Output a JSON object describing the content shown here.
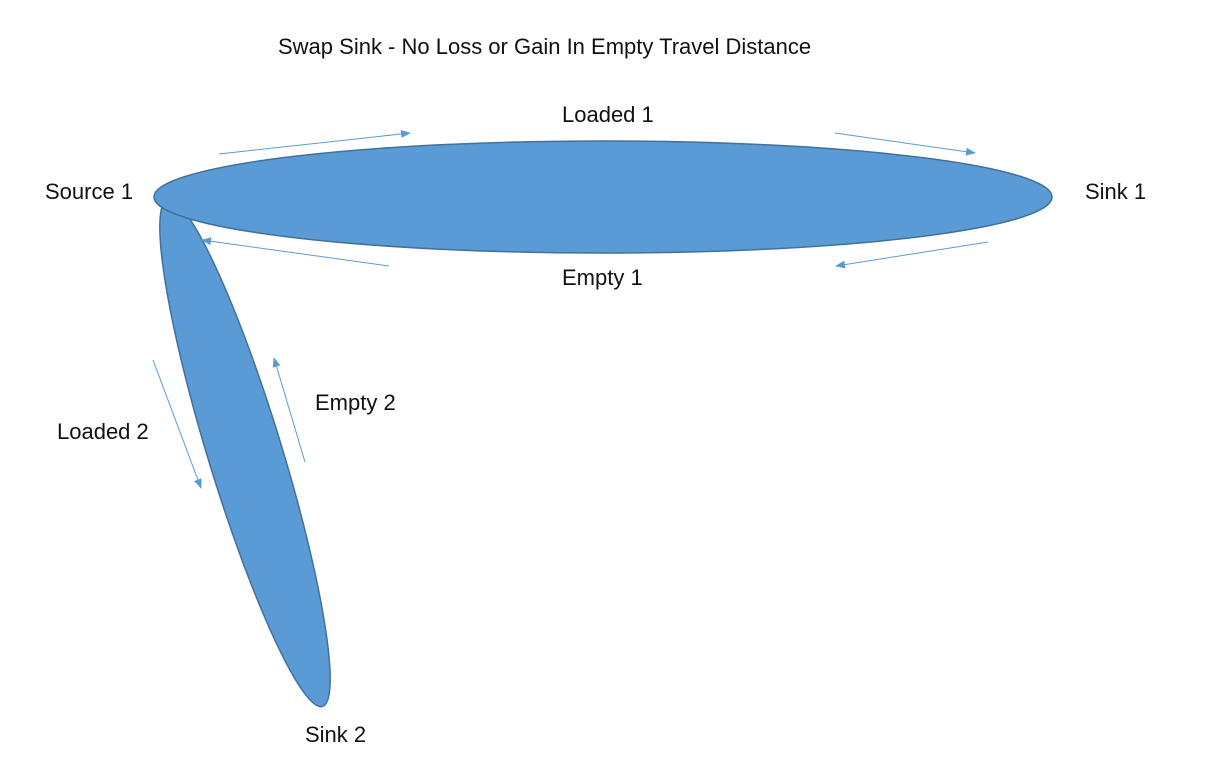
{
  "title": "Swap Sink - No Loss or Gain In Empty Travel Distance",
  "nodes": {
    "source_1": "Source 1",
    "sink_1": "Sink 1",
    "sink_2": "Sink 2"
  },
  "edges": {
    "loaded_1": "Loaded 1",
    "empty_1": "Empty 1",
    "empty_2": "Empty 2",
    "loaded_2": "Loaded 2"
  },
  "colors": {
    "ellipse_fill": "#5b9bd5",
    "ellipse_stroke": "#41719c",
    "arrow": "#5b9bd5"
  }
}
